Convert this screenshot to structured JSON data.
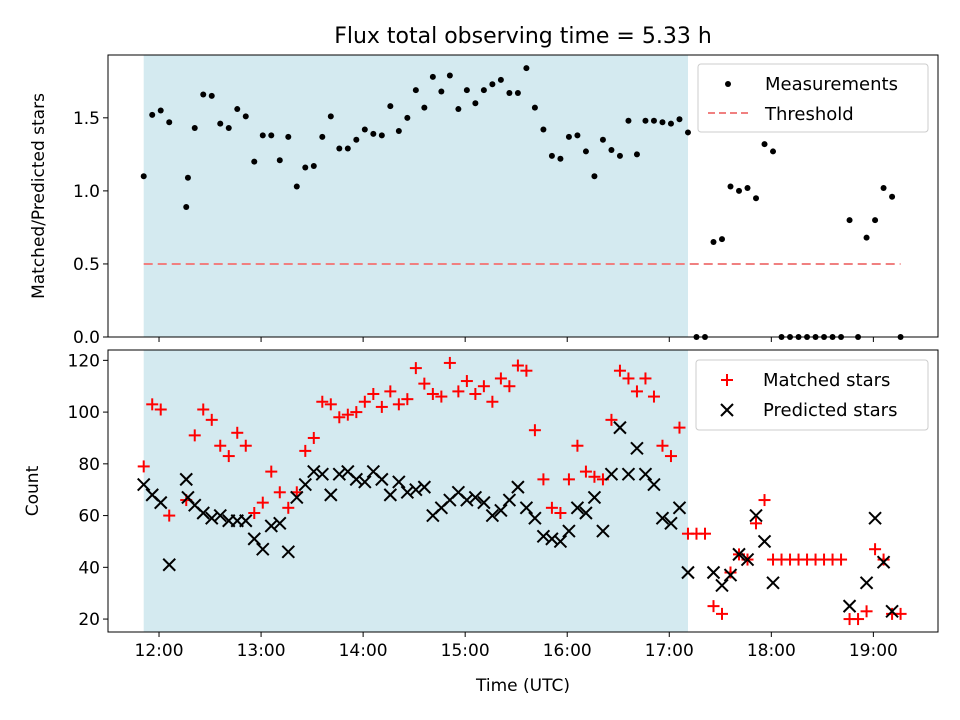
{
  "chart_data": [
    {
      "type": "scatter",
      "title": "Flux total observing time = 5.33 h",
      "xlabel": "",
      "ylabel": "Matched/Predicted stars",
      "xlim": [
        "11:30",
        "19:38"
      ],
      "ylim": [
        0,
        1.93
      ],
      "yticks": [
        "0.0",
        "0.5",
        "1.0",
        "1.5"
      ],
      "grid": false,
      "legend_position": "top-right",
      "shaded_region": {
        "x_start": "11:51",
        "x_end": "17:11",
        "color": "#d4eaf0"
      },
      "series": [
        {
          "name": "Measurements",
          "marker": "dot",
          "color": "#000000",
          "points": [
            [
              "11:51",
              1.1
            ],
            [
              "11:56",
              1.52
            ],
            [
              "12:01",
              1.55
            ],
            [
              "12:06",
              1.47
            ],
            [
              "12:16",
              0.89
            ],
            [
              "12:17",
              1.09
            ],
            [
              "12:21",
              1.43
            ],
            [
              "12:26",
              1.66
            ],
            [
              "12:31",
              1.65
            ],
            [
              "12:36",
              1.46
            ],
            [
              "12:41",
              1.43
            ],
            [
              "12:46",
              1.56
            ],
            [
              "12:51",
              1.51
            ],
            [
              "12:56",
              1.2
            ],
            [
              "13:01",
              1.38
            ],
            [
              "13:06",
              1.38
            ],
            [
              "13:11",
              1.21
            ],
            [
              "13:16",
              1.37
            ],
            [
              "13:21",
              1.03
            ],
            [
              "13:26",
              1.16
            ],
            [
              "13:31",
              1.17
            ],
            [
              "13:36",
              1.37
            ],
            [
              "13:41",
              1.51
            ],
            [
              "13:46",
              1.29
            ],
            [
              "13:51",
              1.29
            ],
            [
              "13:56",
              1.35
            ],
            [
              "14:01",
              1.42
            ],
            [
              "14:06",
              1.39
            ],
            [
              "14:11",
              1.38
            ],
            [
              "14:16",
              1.58
            ],
            [
              "14:21",
              1.41
            ],
            [
              "14:26",
              1.5
            ],
            [
              "14:31",
              1.69
            ],
            [
              "14:36",
              1.57
            ],
            [
              "14:41",
              1.78
            ],
            [
              "14:46",
              1.68
            ],
            [
              "14:51",
              1.79
            ],
            [
              "14:56",
              1.56
            ],
            [
              "15:01",
              1.69
            ],
            [
              "15:06",
              1.6
            ],
            [
              "15:11",
              1.69
            ],
            [
              "15:16",
              1.73
            ],
            [
              "15:21",
              1.76
            ],
            [
              "15:26",
              1.67
            ],
            [
              "15:31",
              1.67
            ],
            [
              "15:36",
              1.84
            ],
            [
              "15:41",
              1.57
            ],
            [
              "15:46",
              1.42
            ],
            [
              "15:51",
              1.24
            ],
            [
              "15:56",
              1.22
            ],
            [
              "16:01",
              1.37
            ],
            [
              "16:06",
              1.38
            ],
            [
              "16:11",
              1.27
            ],
            [
              "16:16",
              1.1
            ],
            [
              "16:21",
              1.35
            ],
            [
              "16:26",
              1.28
            ],
            [
              "16:31",
              1.24
            ],
            [
              "16:36",
              1.48
            ],
            [
              "16:41",
              1.25
            ],
            [
              "16:46",
              1.48
            ],
            [
              "16:51",
              1.48
            ],
            [
              "16:56",
              1.47
            ],
            [
              "17:01",
              1.46
            ],
            [
              "17:06",
              1.49
            ],
            [
              "17:11",
              1.4
            ],
            [
              "17:16",
              0.0
            ],
            [
              "17:21",
              0.0
            ],
            [
              "17:26",
              0.65
            ],
            [
              "17:31",
              0.67
            ],
            [
              "17:36",
              1.03
            ],
            [
              "17:41",
              1.0
            ],
            [
              "17:46",
              1.02
            ],
            [
              "17:51",
              0.95
            ],
            [
              "17:56",
              1.32
            ],
            [
              "18:01",
              1.27
            ],
            [
              "18:06",
              0.0
            ],
            [
              "18:11",
              0.0
            ],
            [
              "18:16",
              0.0
            ],
            [
              "18:21",
              0.0
            ],
            [
              "18:26",
              0.0
            ],
            [
              "18:31",
              0.0
            ],
            [
              "18:36",
              0.0
            ],
            [
              "18:41",
              0.0
            ],
            [
              "18:46",
              0.8
            ],
            [
              "18:51",
              0.0
            ],
            [
              "18:56",
              0.68
            ],
            [
              "19:01",
              0.8
            ],
            [
              "19:06",
              1.02
            ],
            [
              "19:11",
              0.96
            ],
            [
              "19:16",
              0.0
            ]
          ]
        },
        {
          "name": "Threshold",
          "marker": "dashed-line",
          "color": "#f08080",
          "points": [
            [
              "11:51",
              0.5
            ],
            [
              "19:16",
              0.5
            ]
          ]
        }
      ]
    },
    {
      "type": "scatter",
      "title": "",
      "xlabel": "Time (UTC)",
      "ylabel": "Count",
      "xlim": [
        "11:30",
        "19:38"
      ],
      "ylim": [
        15,
        124
      ],
      "yticks": [
        "20",
        "40",
        "60",
        "80",
        "100",
        "120"
      ],
      "xticks": [
        "12:00",
        "13:00",
        "14:00",
        "15:00",
        "16:00",
        "17:00",
        "18:00",
        "19:00"
      ],
      "grid": false,
      "legend_position": "top-right",
      "shaded_region": {
        "x_start": "11:51",
        "x_end": "17:11",
        "color": "#d4eaf0"
      },
      "series": [
        {
          "name": "Matched stars",
          "marker": "plus",
          "color": "#ff0000",
          "points": [
            [
              "11:51",
              79
            ],
            [
              "11:56",
              103
            ],
            [
              "12:01",
              101
            ],
            [
              "12:06",
              60
            ],
            [
              "12:16",
              66
            ],
            [
              "12:21",
              91
            ],
            [
              "12:26",
              101
            ],
            [
              "12:31",
              97
            ],
            [
              "12:36",
              87
            ],
            [
              "12:41",
              83
            ],
            [
              "12:46",
              92
            ],
            [
              "12:51",
              87
            ],
            [
              "12:56",
              61
            ],
            [
              "13:01",
              65
            ],
            [
              "13:06",
              77
            ],
            [
              "13:11",
              69
            ],
            [
              "13:16",
              63
            ],
            [
              "13:21",
              69
            ],
            [
              "13:26",
              85
            ],
            [
              "13:31",
              90
            ],
            [
              "13:36",
              104
            ],
            [
              "13:41",
              103
            ],
            [
              "13:46",
              98
            ],
            [
              "13:51",
              99
            ],
            [
              "13:56",
              100
            ],
            [
              "14:01",
              104
            ],
            [
              "14:06",
              107
            ],
            [
              "14:11",
              102
            ],
            [
              "14:16",
              108
            ],
            [
              "14:21",
              103
            ],
            [
              "14:26",
              105
            ],
            [
              "14:31",
              117
            ],
            [
              "14:36",
              111
            ],
            [
              "14:41",
              107
            ],
            [
              "14:46",
              106
            ],
            [
              "14:51",
              119
            ],
            [
              "14:56",
              108
            ],
            [
              "15:01",
              112
            ],
            [
              "15:06",
              107
            ],
            [
              "15:11",
              110
            ],
            [
              "15:16",
              104
            ],
            [
              "15:21",
              113
            ],
            [
              "15:26",
              110
            ],
            [
              "15:31",
              118
            ],
            [
              "15:36",
              116
            ],
            [
              "15:41",
              93
            ],
            [
              "15:46",
              74
            ],
            [
              "15:51",
              63
            ],
            [
              "15:56",
              61
            ],
            [
              "16:01",
              74
            ],
            [
              "16:06",
              87
            ],
            [
              "16:11",
              77
            ],
            [
              "16:16",
              75
            ],
            [
              "16:21",
              74
            ],
            [
              "16:26",
              97
            ],
            [
              "16:31",
              116
            ],
            [
              "16:36",
              113
            ],
            [
              "16:41",
              108
            ],
            [
              "16:46",
              113
            ],
            [
              "16:51",
              106
            ],
            [
              "16:56",
              87
            ],
            [
              "17:01",
              83
            ],
            [
              "17:06",
              94
            ],
            [
              "17:11",
              53
            ],
            [
              "17:16",
              53
            ],
            [
              "17:21",
              53
            ],
            [
              "17:26",
              25
            ],
            [
              "17:31",
              22
            ],
            [
              "17:36",
              38
            ],
            [
              "17:41",
              45
            ],
            [
              "17:46",
              43
            ],
            [
              "17:51",
              57
            ],
            [
              "17:56",
              66
            ],
            [
              "18:01",
              43
            ],
            [
              "18:06",
              43
            ],
            [
              "18:11",
              43
            ],
            [
              "18:16",
              43
            ],
            [
              "18:21",
              43
            ],
            [
              "18:26",
              43
            ],
            [
              "18:31",
              43
            ],
            [
              "18:36",
              43
            ],
            [
              "18:41",
              43
            ],
            [
              "18:46",
              20
            ],
            [
              "18:51",
              20
            ],
            [
              "18:56",
              23
            ],
            [
              "19:01",
              47
            ],
            [
              "19:06",
              43
            ],
            [
              "19:11",
              22
            ],
            [
              "19:16",
              22
            ]
          ]
        },
        {
          "name": "Predicted stars",
          "marker": "x",
          "color": "#000000",
          "points": [
            [
              "11:51",
              72
            ],
            [
              "11:56",
              68
            ],
            [
              "12:01",
              65
            ],
            [
              "12:06",
              41
            ],
            [
              "12:16",
              74
            ],
            [
              "12:17",
              67
            ],
            [
              "12:21",
              64
            ],
            [
              "12:26",
              61
            ],
            [
              "12:31",
              59
            ],
            [
              "12:36",
              60
            ],
            [
              "12:41",
              58
            ],
            [
              "12:46",
              58
            ],
            [
              "12:51",
              58
            ],
            [
              "12:56",
              51
            ],
            [
              "13:01",
              47
            ],
            [
              "13:06",
              56
            ],
            [
              "13:11",
              57
            ],
            [
              "13:16",
              46
            ],
            [
              "13:21",
              67
            ],
            [
              "13:26",
              72
            ],
            [
              "13:31",
              77
            ],
            [
              "13:36",
              76
            ],
            [
              "13:41",
              68
            ],
            [
              "13:46",
              76
            ],
            [
              "13:51",
              77
            ],
            [
              "13:56",
              74
            ],
            [
              "14:01",
              73
            ],
            [
              "14:06",
              77
            ],
            [
              "14:11",
              74
            ],
            [
              "14:16",
              68
            ],
            [
              "14:21",
              73
            ],
            [
              "14:26",
              69
            ],
            [
              "14:31",
              70
            ],
            [
              "14:36",
              71
            ],
            [
              "14:41",
              60
            ],
            [
              "14:46",
              63
            ],
            [
              "14:51",
              66
            ],
            [
              "14:56",
              69
            ],
            [
              "15:01",
              66
            ],
            [
              "15:06",
              67
            ],
            [
              "15:11",
              65
            ],
            [
              "15:16",
              60
            ],
            [
              "15:21",
              62
            ],
            [
              "15:26",
              66
            ],
            [
              "15:31",
              71
            ],
            [
              "15:36",
              63
            ],
            [
              "15:41",
              59
            ],
            [
              "15:46",
              52
            ],
            [
              "15:51",
              51
            ],
            [
              "15:56",
              50
            ],
            [
              "16:01",
              54
            ],
            [
              "16:06",
              63
            ],
            [
              "16:11",
              61
            ],
            [
              "16:16",
              67
            ],
            [
              "16:21",
              54
            ],
            [
              "16:26",
              76
            ],
            [
              "16:31",
              94
            ],
            [
              "16:36",
              76
            ],
            [
              "16:41",
              86
            ],
            [
              "16:46",
              76
            ],
            [
              "16:51",
              72
            ],
            [
              "16:56",
              59
            ],
            [
              "17:01",
              57
            ],
            [
              "17:06",
              63
            ],
            [
              "17:11",
              38
            ],
            [
              "17:26",
              38
            ],
            [
              "17:31",
              33
            ],
            [
              "17:36",
              37
            ],
            [
              "17:41",
              45
            ],
            [
              "17:46",
              43
            ],
            [
              "17:51",
              60
            ],
            [
              "17:56",
              50
            ],
            [
              "18:01",
              34
            ],
            [
              "18:46",
              25
            ],
            [
              "18:56",
              34
            ],
            [
              "19:01",
              59
            ],
            [
              "19:06",
              42
            ],
            [
              "19:11",
              23
            ]
          ]
        }
      ]
    }
  ]
}
